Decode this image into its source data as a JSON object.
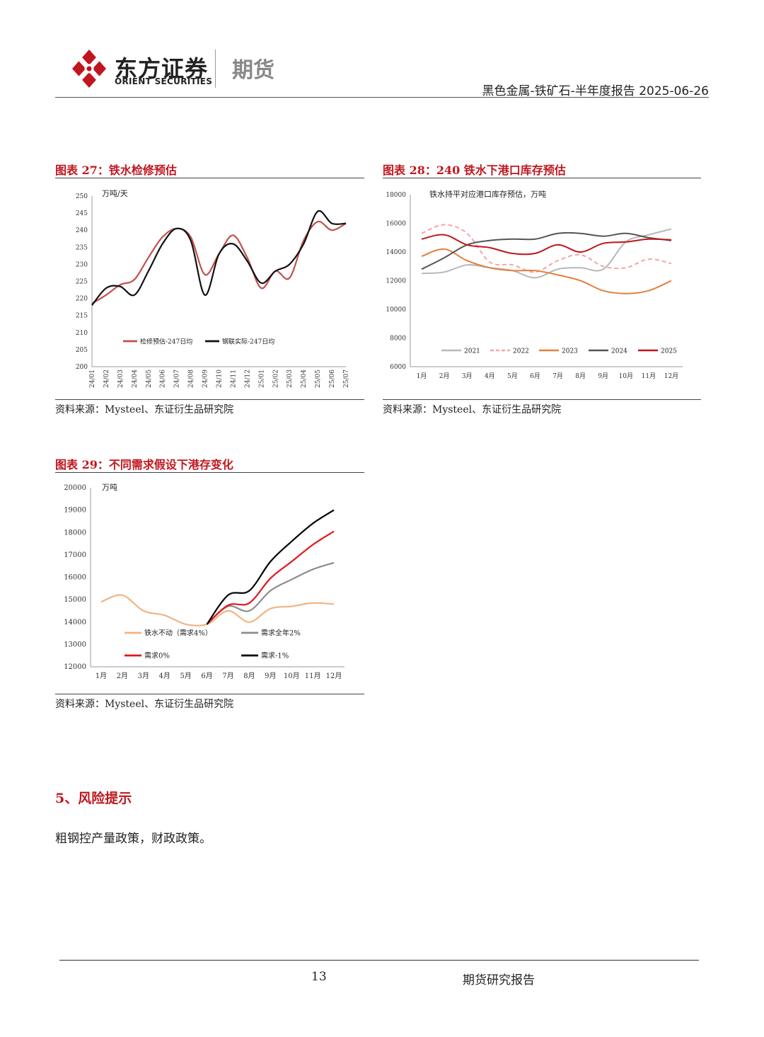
{
  "header": {
    "brand_cn": "东方证券",
    "brand_en": "ORIENT SECURITIES",
    "brand_unit": "期货",
    "report_title": "黑色金属-铁矿石-半年度报告 2025-06-26",
    "accent": "#c0161e"
  },
  "figure27": {
    "caption": "图表 27：铁水检修预估",
    "source": "资料来源：Mysteel、东证衍生品研究院"
  },
  "figure28": {
    "caption": "图表 28：240 铁水下港口库存预估",
    "source": "资料来源：Mysteel、东证衍生品研究院"
  },
  "figure29": {
    "caption": "图表 29：不同需求假设下港存变化",
    "source": "资料来源：Mysteel、东证衍生品研究院"
  },
  "section": {
    "title": "5、风险提示",
    "body": "粗钢控产量政策，财政政策。"
  },
  "footer": {
    "page_number": "13",
    "label": "期货研究报告"
  },
  "chart_data": [
    {
      "type": "line",
      "ylabel": "万吨/天",
      "ylim": [
        200,
        250
      ],
      "yticks": [
        200,
        205,
        210,
        215,
        220,
        225,
        230,
        235,
        240,
        245,
        250
      ],
      "categories": [
        "24/01",
        "24/02",
        "24/03",
        "24/04",
        "24/05",
        "24/06",
        "24/07",
        "24/08",
        "24/09",
        "24/10",
        "24/11",
        "24/12",
        "25/01",
        "25/02",
        "25/03",
        "25/04",
        "25/05",
        "25/06",
        "25/07"
      ],
      "legend": "bottom-left",
      "series": [
        {
          "name": "检修预估-247日均",
          "color": "#c0504d",
          "values": [
            218.5,
            221,
            224,
            225.5,
            232,
            238,
            240.5,
            238,
            227,
            233,
            238.5,
            232,
            223,
            228,
            226,
            237,
            242.5,
            240,
            242
          ]
        },
        {
          "name": "钢联实际-247日均",
          "color": "#111111",
          "values": [
            218,
            223,
            223.5,
            221,
            228,
            236,
            240.5,
            237,
            221,
            233,
            236,
            231,
            224.5,
            228,
            230,
            236,
            245.5,
            242,
            242
          ]
        }
      ]
    },
    {
      "type": "line",
      "title": "铁水持平对应港口库存预估，万吨",
      "ylim": [
        6000,
        18000
      ],
      "yticks": [
        6000,
        8000,
        10000,
        12000,
        14000,
        16000,
        18000
      ],
      "categories": [
        "1月",
        "2月",
        "3月",
        "4月",
        "5月",
        "6月",
        "7月",
        "8月",
        "9月",
        "10月",
        "11月",
        "12月"
      ],
      "legend": "bottom",
      "series": [
        {
          "name": "2021",
          "color": "#b8b8b8",
          "dash": false,
          "values": [
            12500,
            12600,
            13100,
            12900,
            12700,
            12200,
            12800,
            12900,
            12800,
            14700,
            15200,
            15600
          ]
        },
        {
          "name": "2022",
          "color": "#f4a6a6",
          "dash": true,
          "values": [
            15300,
            15900,
            15300,
            13300,
            13100,
            12600,
            13400,
            13800,
            13000,
            12900,
            13500,
            13200
          ]
        },
        {
          "name": "2023",
          "color": "#e2803f",
          "dash": false,
          "values": [
            13700,
            14200,
            13400,
            12900,
            12700,
            12700,
            12400,
            12000,
            11300,
            11100,
            11300,
            12000
          ]
        },
        {
          "name": "2024",
          "color": "#555555",
          "dash": false,
          "values": [
            12800,
            13600,
            14500,
            14800,
            14900,
            14900,
            15300,
            15300,
            15100,
            15300,
            15000,
            14800
          ]
        },
        {
          "name": "2025",
          "color": "#c0161e",
          "dash": false,
          "values": [
            14900,
            15200,
            14500,
            14300,
            13900,
            13900,
            14500,
            14000,
            14600,
            14700,
            14900,
            14850
          ]
        }
      ]
    },
    {
      "type": "line",
      "ylabel": "万吨",
      "ylim": [
        12000,
        20000
      ],
      "yticks": [
        12000,
        13000,
        14000,
        15000,
        16000,
        17000,
        18000,
        19000,
        20000
      ],
      "categories": [
        "1月",
        "2月",
        "3月",
        "4月",
        "5月",
        "6月",
        "7月",
        "8月",
        "9月",
        "10月",
        "11月",
        "12月"
      ],
      "legend": "bottom-left",
      "series": [
        {
          "name": "铁水不动（需求4%）",
          "color": "#f2b482",
          "values": [
            14900,
            15200,
            14500,
            14300,
            13900,
            13900,
            14500,
            14000,
            14600,
            14700,
            14850,
            14800
          ]
        },
        {
          "name": "需求全年2%",
          "color": "#8c8c8c",
          "values": [
            null,
            null,
            null,
            null,
            null,
            13900,
            14700,
            14500,
            15400,
            15900,
            16350,
            16650
          ]
        },
        {
          "name": "需求0%",
          "color": "#e3161b",
          "values": [
            null,
            null,
            null,
            null,
            null,
            13900,
            14750,
            14850,
            15950,
            16700,
            17450,
            18050
          ]
        },
        {
          "name": "需求-1%",
          "color": "#000000",
          "values": [
            null,
            null,
            null,
            null,
            null,
            13900,
            15200,
            15400,
            16700,
            17600,
            18400,
            19000
          ]
        }
      ]
    }
  ]
}
